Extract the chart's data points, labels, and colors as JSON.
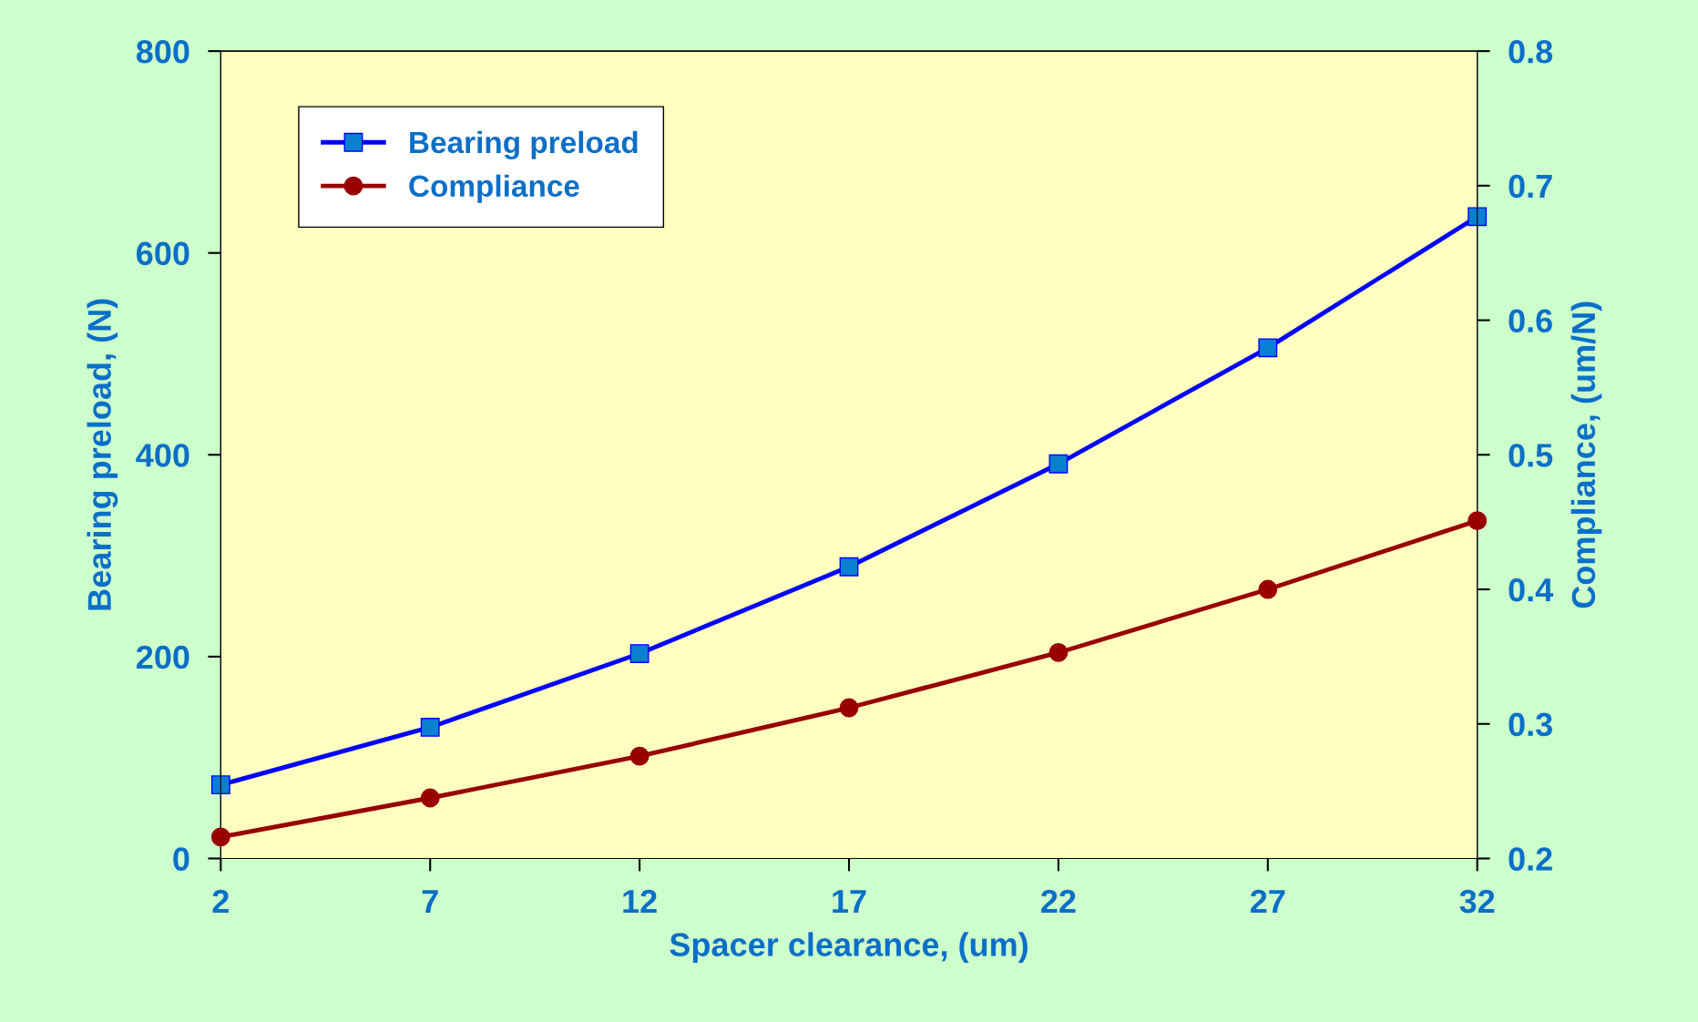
{
  "chart_data": {
    "type": "line",
    "xlabel": "Spacer clearance, (um)",
    "ylabel": "Bearing preload, (N)",
    "y2label": "Compliance, (um/N)",
    "x": [
      2,
      7,
      12,
      17,
      22,
      27,
      32
    ],
    "xlim": [
      2,
      32
    ],
    "xticks": [
      2,
      7,
      12,
      17,
      22,
      27,
      32
    ],
    "ylim": [
      0,
      800
    ],
    "yticks": [
      0,
      200,
      400,
      600,
      800
    ],
    "y2lim": [
      0.2,
      0.8
    ],
    "y2ticks": [
      0.2,
      0.3,
      0.4,
      0.5,
      0.6,
      0.7,
      0.8
    ],
    "grid": false,
    "legend": "top left",
    "line_style": "solid",
    "series": [
      {
        "name": "Bearing preload",
        "color": "#0000ff",
        "marker": "square",
        "values": [
          73,
          130,
          203,
          289,
          391,
          506,
          636
        ]
      },
      {
        "name": "Compliance",
        "color": "#990000",
        "marker": "circle",
        "axis": "y2",
        "values": [
          0.216,
          0.245,
          0.276,
          0.312,
          0.353,
          0.4,
          0.451
        ]
      }
    ]
  }
}
